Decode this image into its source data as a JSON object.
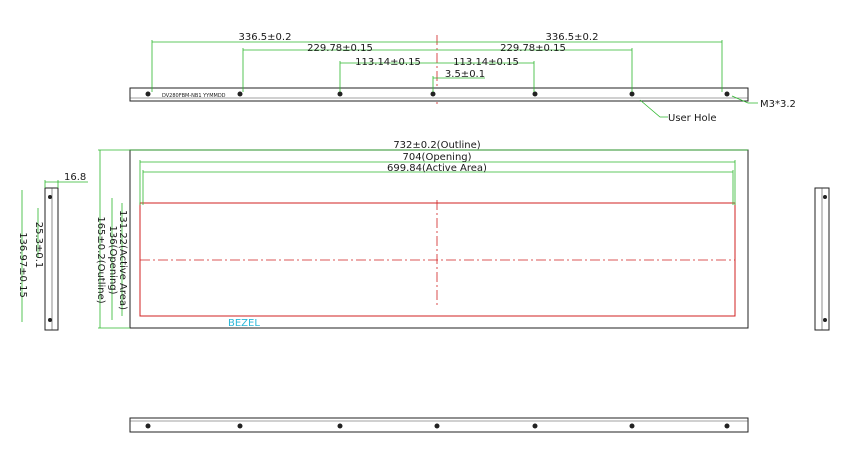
{
  "top_view": {
    "model_label": "DV280FBM-NB1 YYMMDD",
    "dimensions": [
      "336.5±0.2",
      "336.5±0.2",
      "229.78±0.15",
      "229.78±0.15",
      "113.14±0.15",
      "113.14±0.15",
      "3.5±0.1"
    ],
    "callouts": [
      "User Hole",
      "M3*3.2"
    ]
  },
  "front_view": {
    "dimensions": [
      "732±0.2(Outline)",
      "704(Opening)",
      "699.84(Active Area)",
      "131.22(Active Area)",
      "136(Opening)",
      "165±0.2(Outline)"
    ],
    "bezel": "BEZEL"
  },
  "side_view": {
    "dimensions": [
      "16.8",
      "25.3±0.1",
      "136.97±0.15"
    ]
  }
}
